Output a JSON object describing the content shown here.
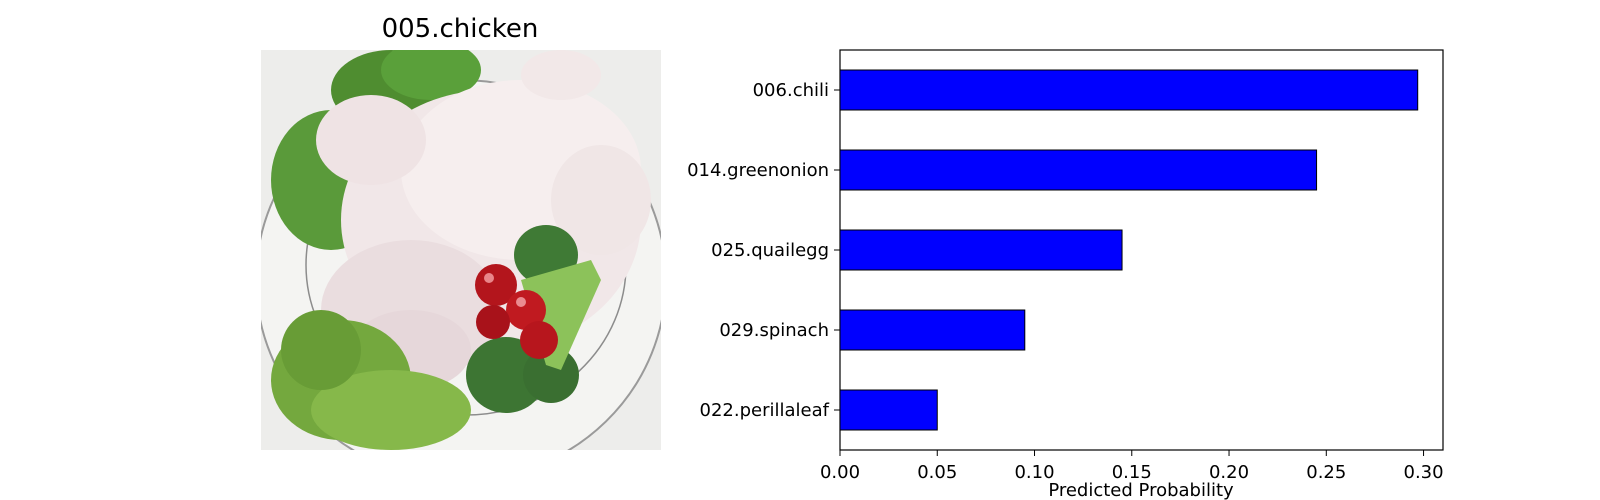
{
  "image_panel": {
    "title": "005.chicken",
    "photo_icon": "raw-chicken-on-plate-with-vegetables"
  },
  "chart_data": {
    "type": "bar",
    "orientation": "horizontal",
    "categories": [
      "006.chili",
      "014.greenonion",
      "025.quailegg",
      "029.spinach",
      "022.perillaleaf"
    ],
    "values": [
      0.297,
      0.245,
      0.145,
      0.095,
      0.05
    ],
    "xlabel": "Predicted Probability",
    "ylabel": "",
    "title": "",
    "xlim": [
      0.0,
      0.31
    ],
    "xticks": [
      "0.00",
      "0.05",
      "0.10",
      "0.15",
      "0.20",
      "0.25",
      "0.30"
    ],
    "grid": false,
    "legend": "none",
    "bar_color": "#0000ff",
    "edge_color": "#000000"
  }
}
